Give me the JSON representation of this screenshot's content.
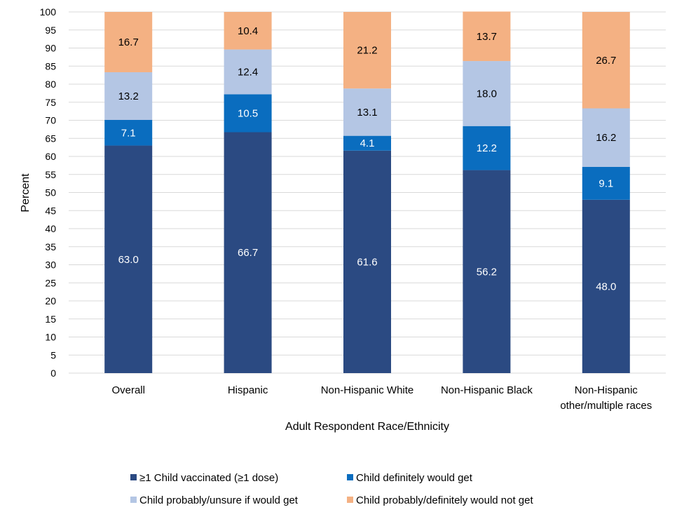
{
  "chart_data": {
    "type": "bar",
    "stacked": true,
    "categories": [
      [
        "Overall"
      ],
      [
        "Hispanic"
      ],
      [
        "Non-Hispanic White"
      ],
      [
        "Non-Hispanic Black"
      ],
      [
        "Non-Hispanic",
        "other/multiple races"
      ]
    ],
    "series": [
      {
        "name": "≥1 Child vaccinated (≥1 dose)",
        "color": "#2B4A82",
        "label_color": "#FFFFFF",
        "values": [
          63.0,
          66.7,
          61.6,
          56.2,
          48.0
        ],
        "labels": [
          "63.0",
          "66.7",
          "61.6",
          "56.2",
          "48.0"
        ]
      },
      {
        "name": "Child definitely would get",
        "color": "#0A6DBF",
        "label_color": "#FFFFFF",
        "values": [
          7.1,
          10.5,
          4.1,
          12.2,
          9.1
        ],
        "labels": [
          "7.1",
          "10.5",
          "4.1",
          "12.2",
          "9.1"
        ]
      },
      {
        "name": "Child probably/unsure if would get",
        "color": "#B4C6E4",
        "label_color": "#000000",
        "values": [
          13.2,
          12.4,
          13.1,
          18.0,
          16.2
        ],
        "labels": [
          "13.2",
          "12.4",
          "13.1",
          "18.0",
          "16.2"
        ]
      },
      {
        "name": "Child probably/definitely would not get",
        "color": "#F4B183",
        "label_color": "#000000",
        "values": [
          16.7,
          10.4,
          21.2,
          13.7,
          26.7
        ],
        "labels": [
          "16.7",
          "10.4",
          "21.2",
          "13.7",
          "26.7"
        ]
      }
    ],
    "xlabel": "Adult Respondent Race/Ethnicity",
    "ylabel": "Percent",
    "ylim": [
      0,
      100
    ],
    "ytick_step": 5,
    "grid": true,
    "legend_position": "bottom",
    "gridline_color": "#D9D9D9"
  }
}
